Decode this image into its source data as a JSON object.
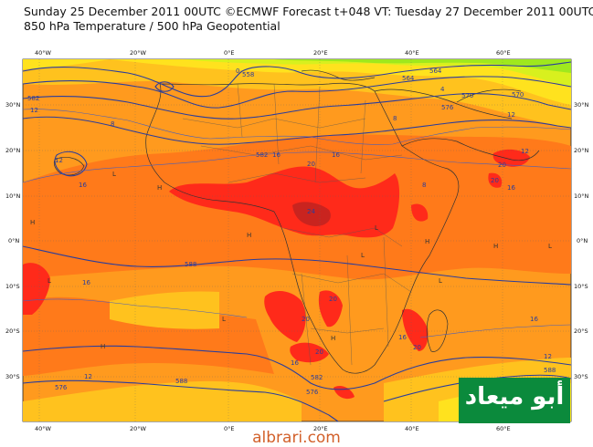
{
  "title": {
    "line1": "Sunday 25 December 2011 00UTC ©ECMWF Forecast t+048 VT: Tuesday 27 December 2011 00UTC",
    "line2": "850 hPa Temperature / 500 hPa Geopotential"
  },
  "axes": {
    "top_lon": [
      "40°W",
      "20°W",
      "0°E",
      "20°E",
      "40°E",
      "60°E"
    ],
    "bottom_lon": [
      "40°W",
      "20°W",
      "0°E",
      "20°E",
      "40°E",
      "60°E"
    ],
    "left_lat": [
      "30°N",
      "20°N",
      "10°N",
      "0°N",
      "10°S",
      "20°S",
      "30°S"
    ],
    "right_lat": [
      "30°N",
      "20°N",
      "10°N",
      "0°N",
      "10°S",
      "20°S",
      "30°S"
    ]
  },
  "temperature_labels": [
    "12",
    "8",
    "4",
    "0",
    "8",
    "12",
    "16",
    "20",
    "24",
    "20",
    "16",
    "12",
    "8",
    "16",
    "20",
    "16",
    "20",
    "16",
    "20",
    "16",
    "12",
    "16",
    "20",
    "12",
    "16",
    "20",
    "12"
  ],
  "geopotential_labels": [
    "564",
    "570",
    "576",
    "582",
    "588",
    "588",
    "582",
    "576",
    "570",
    "564",
    "558",
    "576",
    "582",
    "588"
  ],
  "pressure_markers": [
    "H",
    "L",
    "L",
    "H",
    "L",
    "H",
    "L",
    "H",
    "H",
    "L",
    "H",
    "L",
    "H",
    "L"
  ],
  "colors": {
    "land_hot": "#ff2a1a",
    "very_hot": "#c9241f",
    "warm": "#ff7a1a",
    "mild": "#ff9a1e",
    "cool": "#ffc21e",
    "cooler": "#ffe21e",
    "cold": "#d8f01e",
    "colder": "#9fe81e",
    "contour": "#2a3d9c"
  },
  "watermark": {
    "arabic": "أبو ميعاد",
    "site": "albrari.com"
  }
}
